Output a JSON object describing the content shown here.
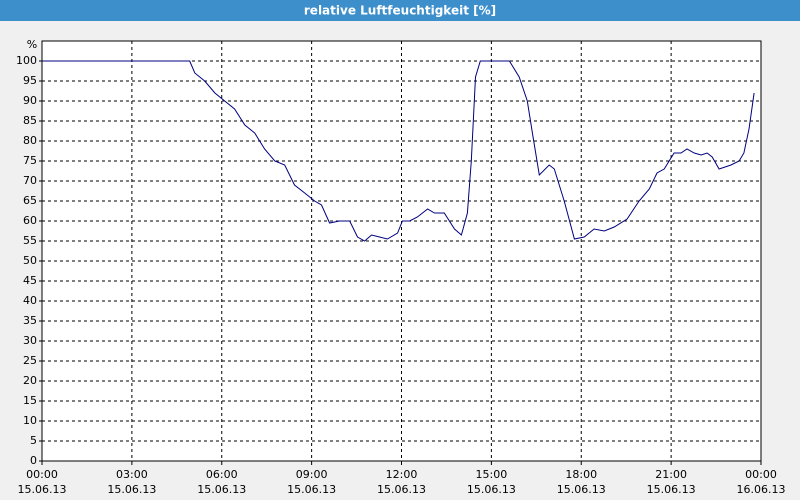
{
  "chart_data": {
    "type": "line",
    "title": "relative Luftfeuchtigkeit [%]",
    "y_label": "%",
    "x": [
      0,
      4.93,
      5.1,
      5.43,
      5.77,
      6.1,
      6.43,
      6.77,
      7.1,
      7.43,
      7.77,
      8.1,
      8.43,
      8.77,
      9.1,
      9.33,
      9.6,
      9.93,
      10.27,
      10.53,
      10.77,
      11.0,
      11.27,
      11.53,
      11.87,
      12.03,
      12.27,
      12.53,
      12.87,
      13.1,
      13.43,
      13.77,
      14.0,
      14.2,
      14.33,
      14.47,
      14.63,
      15.6,
      15.93,
      16.2,
      16.37,
      16.6,
      16.93,
      17.1,
      17.43,
      17.77,
      18.1,
      18.43,
      18.77,
      19.1,
      19.53,
      19.93,
      20.27,
      20.53,
      20.77,
      21.1,
      21.33,
      21.53,
      21.77,
      22.0,
      22.2,
      22.37,
      22.6,
      23.0,
      23.27,
      23.43,
      23.6,
      23.77
    ],
    "series": [
      {
        "name": "relative Luftfeuchtigkeit",
        "color": "#000080",
        "values": [
          100,
          100,
          97,
          95,
          92,
          90,
          88,
          84,
          82,
          78,
          75,
          74,
          69,
          67,
          65,
          64,
          59.5,
          60,
          60,
          56,
          55,
          56.5,
          56,
          55.5,
          57,
          60,
          60,
          61,
          63,
          62,
          62,
          58,
          56.5,
          62,
          75,
          96,
          100,
          100,
          96,
          90,
          82,
          71.5,
          74,
          73,
          65,
          55.5,
          56,
          58,
          57.5,
          58.5,
          60.5,
          65,
          68,
          72,
          73,
          77,
          77,
          78,
          77,
          76.5,
          77,
          76,
          73,
          74,
          75,
          77,
          83,
          92
        ]
      }
    ],
    "xlim": [
      0,
      24
    ],
    "xticks": [
      {
        "value": 0,
        "label": [
          "00:00",
          "15.06.13"
        ]
      },
      {
        "value": 3,
        "label": [
          "03:00",
          "15.06.13"
        ]
      },
      {
        "value": 6,
        "label": [
          "06:00",
          "15.06.13"
        ]
      },
      {
        "value": 9,
        "label": [
          "09:00",
          "15.06.13"
        ]
      },
      {
        "value": 12,
        "label": [
          "12:00",
          "15.06.13"
        ]
      },
      {
        "value": 15,
        "label": [
          "15:00",
          "15.06.13"
        ]
      },
      {
        "value": 18,
        "label": [
          "18:00",
          "15.06.13"
        ]
      },
      {
        "value": 21,
        "label": [
          "21:00",
          "15.06.13"
        ]
      },
      {
        "value": 24,
        "label": [
          "00:00",
          "16.06.13"
        ]
      }
    ],
    "ylim": [
      0,
      105
    ],
    "yticks": [
      0,
      5,
      10,
      15,
      20,
      25,
      30,
      35,
      40,
      45,
      50,
      55,
      60,
      65,
      70,
      75,
      80,
      85,
      90,
      95,
      100
    ],
    "grid": true
  }
}
